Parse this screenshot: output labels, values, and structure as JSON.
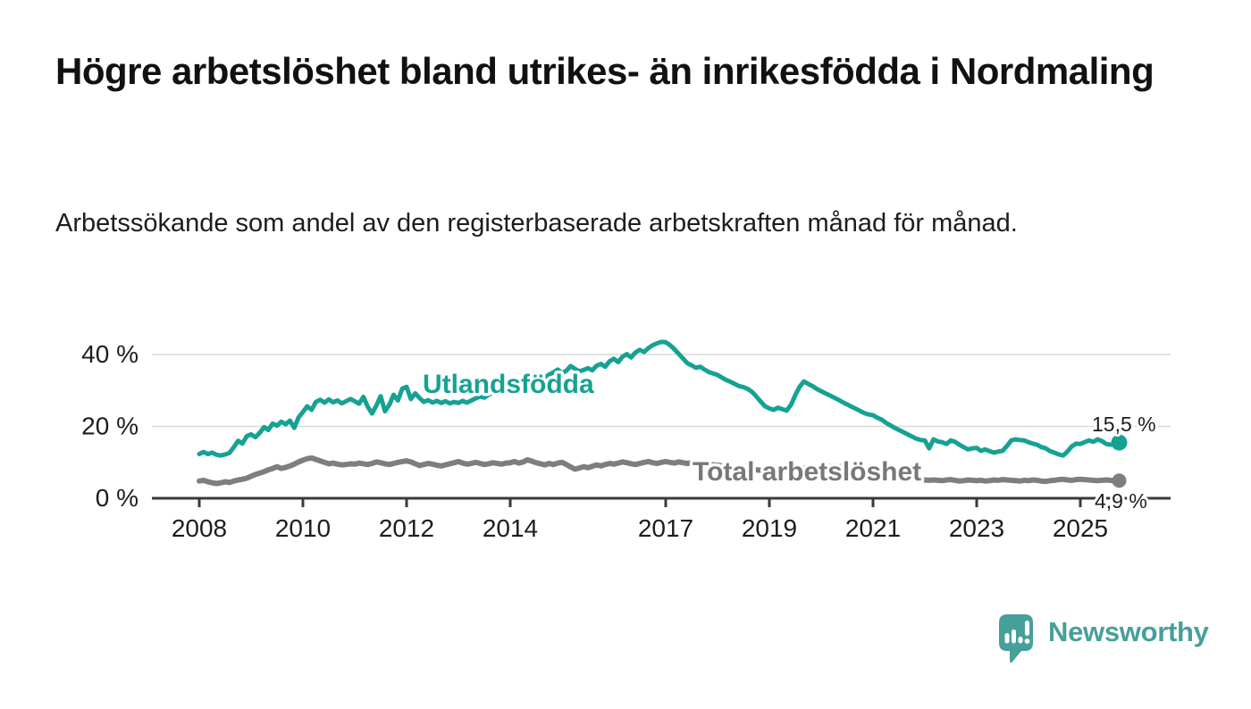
{
  "header": {
    "title": "Högre arbetslöshet bland utrikes- än inrikesfödda i Nordmaling",
    "subtitle": "Arbetssökande som andel av den registerbaserade arbetskraften månad för månad."
  },
  "branding": {
    "wordmark": "Newsworthy",
    "logo_icon": "speech-bubble-bar-chart-exclamation-icon",
    "brand_color": "#46a09a"
  },
  "colors": {
    "foreign_born_line": "#16a293",
    "total_line": "#7d7e81",
    "total_label": "#77787a",
    "grid": "#d9d9d9",
    "axis": "#3a3a3c",
    "text": "#1d1d1d"
  },
  "chart_data": {
    "type": "line",
    "x_unit": "decimal-year (monthly)",
    "x_start": 2008.0,
    "x_step_years": 0.0833333,
    "grid": "horizontal",
    "legend": "inline-labels",
    "xlim": [
      2007.1,
      2026.7
    ],
    "ylim": [
      0,
      46
    ],
    "x_ticks": [
      {
        "value": 2008,
        "label": "2008"
      },
      {
        "value": 2010,
        "label": "2010"
      },
      {
        "value": 2012,
        "label": "2012"
      },
      {
        "value": 2014,
        "label": "2014"
      },
      {
        "value": 2017,
        "label": "2017"
      },
      {
        "value": 2019,
        "label": "2019"
      },
      {
        "value": 2021,
        "label": "2021"
      },
      {
        "value": 2023,
        "label": "2023"
      },
      {
        "value": 2025,
        "label": "2025"
      }
    ],
    "y_ticks": [
      {
        "value": 0,
        "label": "0 %"
      },
      {
        "value": 20,
        "label": "20 %"
      },
      {
        "value": 40,
        "label": "40 %"
      }
    ],
    "series": [
      {
        "name": "Utlandsfödda",
        "color": "#16a293",
        "end_label": "15,5 %",
        "end_value": 15.5,
        "values": [
          12.3,
          12.9,
          12.3,
          12.7,
          12.1,
          11.9,
          12.2,
          12.6,
          14.2,
          16.0,
          15.2,
          17.3,
          17.8,
          17.0,
          18.2,
          19.8,
          19.0,
          20.8,
          20.2,
          21.3,
          20.6,
          21.6,
          19.6,
          22.5,
          24.0,
          25.6,
          24.6,
          26.8,
          27.4,
          26.6,
          27.5,
          26.7,
          27.2,
          26.4,
          27.0,
          27.6,
          27.0,
          26.3,
          28.2,
          25.5,
          23.6,
          25.8,
          28.4,
          24.2,
          26.0,
          28.8,
          27.2,
          30.5,
          31.0,
          27.6,
          29.2,
          27.9,
          26.8,
          27.3,
          26.6,
          27.1,
          26.5,
          27.0,
          26.4,
          26.8,
          26.5,
          27.1,
          26.6,
          27.2,
          27.8,
          28.3,
          28.0,
          28.8,
          29.4,
          29.0,
          29.6,
          30.1,
          29.8,
          30.5,
          31.2,
          30.6,
          31.8,
          32.4,
          33.0,
          32.4,
          33.6,
          34.4,
          35.0,
          35.8,
          34.8,
          35.5,
          36.8,
          36.0,
          35.3,
          35.7,
          36.2,
          35.6,
          36.9,
          37.4,
          36.6,
          38.1,
          38.8,
          37.9,
          39.4,
          40.1,
          39.2,
          40.6,
          41.3,
          40.7,
          41.8,
          42.6,
          43.1,
          43.5,
          43.4,
          42.6,
          41.5,
          40.2,
          38.9,
          37.6,
          37.0,
          36.3,
          36.6,
          35.8,
          35.1,
          34.7,
          34.3,
          33.6,
          32.9,
          32.4,
          31.8,
          31.2,
          30.9,
          30.4,
          29.6,
          28.3,
          26.9,
          25.6,
          25.0,
          24.6,
          25.2,
          24.8,
          24.4,
          26.0,
          28.7,
          31.0,
          32.5,
          31.8,
          31.2,
          30.4,
          29.8,
          29.2,
          28.6,
          28.0,
          27.4,
          26.7,
          26.1,
          25.5,
          24.9,
          24.3,
          23.7,
          23.3,
          23.1,
          22.4,
          21.9,
          21.0,
          20.3,
          19.6,
          19.0,
          18.4,
          17.8,
          17.2,
          16.6,
          16.2,
          16.1,
          13.9,
          16.4,
          15.8,
          15.6,
          15.1,
          16.1,
          15.7,
          14.9,
          14.2,
          13.6,
          13.9,
          14.0,
          13.2,
          13.6,
          13.1,
          12.7,
          13.0,
          13.2,
          14.5,
          16.1,
          16.4,
          16.2,
          16.1,
          15.6,
          15.2,
          14.9,
          14.2,
          13.9,
          13.1,
          12.7,
          12.2,
          11.9,
          13.0,
          14.4,
          15.2,
          15.1,
          15.6,
          16.1,
          15.7,
          16.4,
          15.9,
          15.1,
          14.9,
          15.1,
          15.5
        ]
      },
      {
        "name": "Total arbetslöshet",
        "color": "#7d7e81",
        "end_label": "4,9 %",
        "end_value": 4.9,
        "values": [
          4.8,
          5.0,
          4.6,
          4.3,
          4.1,
          4.3,
          4.6,
          4.4,
          4.8,
          5.1,
          5.3,
          5.6,
          6.1,
          6.6,
          7.0,
          7.4,
          7.9,
          8.3,
          8.8,
          8.3,
          8.6,
          9.0,
          9.5,
          10.1,
          10.6,
          11.0,
          11.2,
          10.8,
          10.4,
          10.0,
          9.6,
          9.8,
          9.5,
          9.3,
          9.4,
          9.6,
          9.5,
          9.8,
          9.6,
          9.4,
          9.7,
          10.1,
          9.9,
          9.6,
          9.4,
          9.7,
          10.0,
          10.2,
          10.4,
          10.1,
          9.6,
          9.1,
          9.4,
          9.7,
          9.5,
          9.2,
          9.0,
          9.3,
          9.6,
          9.9,
          10.2,
          9.8,
          9.5,
          9.7,
          10.0,
          9.7,
          9.4,
          9.6,
          9.9,
          9.7,
          9.5,
          9.8,
          9.9,
          10.2,
          9.8,
          10.1,
          10.7,
          10.3,
          9.9,
          9.6,
          9.3,
          9.7,
          9.4,
          9.8,
          10.0,
          9.4,
          8.7,
          8.1,
          8.4,
          8.8,
          8.5,
          8.9,
          9.3,
          9.0,
          9.4,
          9.7,
          9.5,
          9.8,
          10.1,
          9.9,
          9.6,
          9.4,
          9.7,
          10.0,
          10.2,
          9.9,
          9.7,
          10.0,
          10.2,
          10.0,
          9.8,
          10.1,
          9.9,
          9.7,
          9.9,
          10.1,
          9.8,
          9.6,
          9.4,
          9.3,
          9.2,
          9.0,
          8.8,
          8.7,
          8.5,
          8.4,
          8.2,
          8.1,
          8.0,
          7.9,
          7.8,
          7.7,
          7.6,
          7.5,
          7.5,
          7.6,
          7.8,
          8.0,
          8.2,
          8.3,
          8.4,
          8.3,
          8.2,
          8.1,
          8.3,
          8.5,
          8.8,
          9.0,
          8.9,
          8.7,
          8.5,
          8.3,
          8.1,
          7.9,
          7.7,
          7.5,
          7.3,
          7.1,
          6.9,
          6.7,
          6.5,
          6.3,
          6.1,
          5.9,
          5.7,
          5.5,
          5.3,
          5.2,
          5.1,
          5.0,
          5.1,
          5.0,
          4.9,
          5.1,
          5.2,
          5.0,
          4.8,
          4.9,
          5.1,
          5.0,
          4.9,
          5.0,
          4.8,
          4.9,
          5.1,
          5.0,
          5.2,
          5.1,
          5.0,
          4.9,
          4.8,
          5.0,
          4.9,
          5.1,
          5.0,
          4.8,
          4.7,
          4.9,
          5.0,
          5.2,
          5.3,
          5.1,
          5.0,
          5.2,
          5.3,
          5.2,
          5.1,
          5.0,
          4.9,
          5.0,
          5.1,
          5.0,
          4.8,
          4.9
        ]
      }
    ]
  }
}
